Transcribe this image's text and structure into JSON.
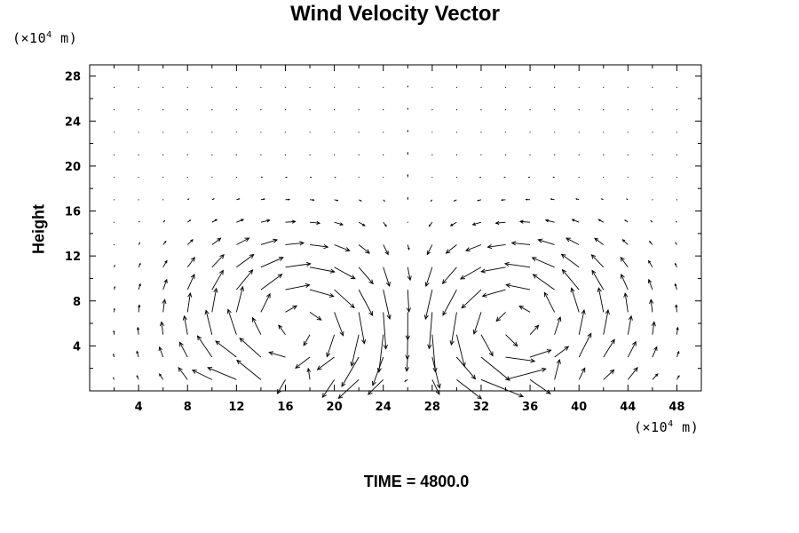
{
  "chart_data": {
    "type": "vector_field",
    "title": "Wind Velocity Vector",
    "ylabel": "Height",
    "x_unit": {
      "prefix": "(×10",
      "exp": "4",
      "suffix": " m)"
    },
    "y_unit": {
      "prefix": "(×10",
      "exp": "4",
      "suffix": " m)"
    },
    "xlim": [
      0,
      50
    ],
    "ylim": [
      0,
      29
    ],
    "x_ticks": [
      4,
      8,
      12,
      16,
      20,
      24,
      28,
      32,
      36,
      40,
      44,
      48
    ],
    "y_ticks": [
      4,
      8,
      12,
      16,
      20,
      24,
      28
    ],
    "grid": false,
    "circulation_cells": [
      {
        "center_x": 17,
        "center_y": 6,
        "direction": "clockwise"
      },
      {
        "center_x": 35,
        "center_y": 6,
        "direction": "counterclockwise"
      }
    ],
    "central_updraft_x": 26,
    "footer": "TIME = 4800.0"
  },
  "colors": {
    "ink": "#000000",
    "background": "#ffffff"
  }
}
